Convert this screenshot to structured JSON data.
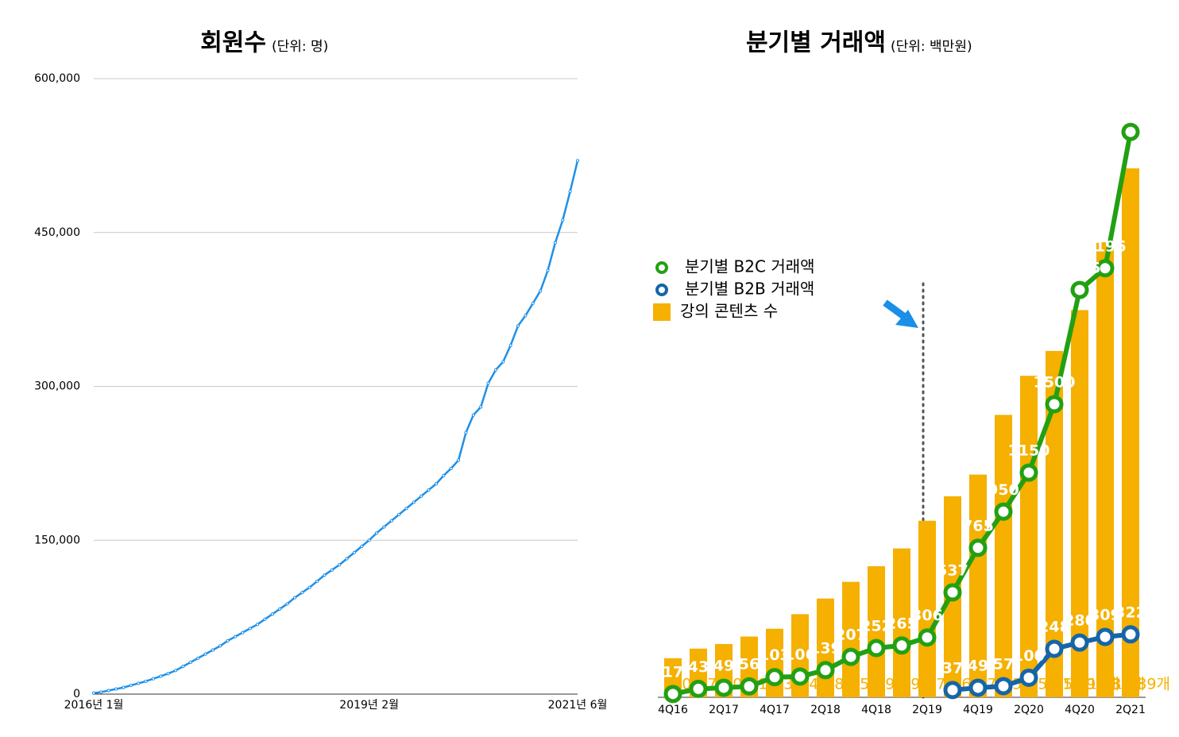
{
  "chart_data": [
    {
      "type": "line",
      "title": "회원수",
      "subtitle": "(단위: 명)",
      "categories": [
        "2016년 1월",
        null,
        null,
        null,
        null,
        null,
        null,
        null,
        null,
        null,
        null,
        null,
        null,
        null,
        null,
        null,
        null,
        null,
        null,
        null,
        null,
        null,
        null,
        null,
        null,
        null,
        null,
        null,
        null,
        null,
        null,
        null,
        null,
        null,
        null,
        null,
        null,
        "2019년 2월",
        null,
        null,
        null,
        null,
        null,
        null,
        null,
        null,
        null,
        null,
        null,
        null,
        null,
        null,
        null,
        null,
        null,
        null,
        null,
        null,
        null,
        null,
        null,
        null,
        null,
        null,
        null,
        "2021년 6월"
      ],
      "values": [
        1000,
        2000,
        3500,
        5000,
        6500,
        8500,
        10500,
        12500,
        15000,
        17500,
        20000,
        23000,
        27000,
        31000,
        35000,
        39000,
        43000,
        47000,
        52000,
        56000,
        60000,
        64000,
        68000,
        73000,
        78000,
        83000,
        88000,
        94000,
        99000,
        104000,
        110000,
        116000,
        121000,
        126000,
        132000,
        138000,
        144000,
        150000,
        157000,
        163000,
        169000,
        175000,
        181000,
        187000,
        193000,
        199000,
        205000,
        213000,
        220000,
        228000,
        255000,
        272000,
        280000,
        303000,
        316000,
        324000,
        340000,
        359000,
        369000,
        381000,
        393000,
        413000,
        440000,
        462000,
        490000,
        520000
      ],
      "color": "#1e90e8",
      "ylim": [
        0,
        600000
      ],
      "yticks": [
        0,
        {
          "value": 150000,
          "label": "150,000"
        },
        {
          "value": 300000,
          "label": "300,000"
        },
        {
          "value": 450000,
          "label": "450,000"
        },
        {
          "value": 600000,
          "label": "600,000"
        }
      ],
      "grid": true
    },
    {
      "type": "combo",
      "title": "분기별 거래액",
      "subtitle": "(단위: 백만원)",
      "categories": [
        "4Q16",
        null,
        "2Q17",
        null,
        "4Q17",
        null,
        "2Q18",
        null,
        "4Q18",
        null,
        "2Q19",
        null,
        "4Q19",
        null,
        "2Q20",
        null,
        "4Q20",
        null,
        "2Q21"
      ],
      "series": [
        {
          "name": "분기별 B2C 거래액",
          "type": "line",
          "color": "#22a012",
          "values": [
            17,
            43,
            49,
            56,
            103,
            106,
            139,
            207,
            252,
            265,
            306,
            537,
            765,
            950,
            1150,
            1500,
            2085,
            2196,
            2894
          ]
        },
        {
          "name": "분기별 B2B 거래액",
          "type": "line",
          "color": "#1565a8",
          "values": [
            null,
            null,
            null,
            null,
            null,
            null,
            null,
            null,
            null,
            null,
            null,
            37,
            49,
            57,
            100,
            248,
            280,
            309,
            322
          ]
        },
        {
          "name": "강의 콘텐츠 수",
          "type": "bar",
          "axis": "y2",
          "color": "#f5b000",
          "values": [
            110,
            137,
            150,
            171,
            193,
            234,
            278,
            325,
            369,
            419,
            497,
            566,
            627,
            795,
            905,
            975,
            1090,
            1281,
            1489
          ],
          "value_labels": [
            "110개",
            "137개",
            "150개",
            "171개",
            "193개",
            "234개",
            "278개",
            "325개",
            "369개",
            "419개",
            "497개",
            "566개",
            "627개",
            "795개",
            "905개",
            "975개",
            "1,090개",
            "1,281개",
            "1,489개"
          ]
        }
      ],
      "ylim": [
        0,
        3000
      ],
      "y2lim": [
        0,
        1650
      ],
      "legend": "center left"
    }
  ]
}
